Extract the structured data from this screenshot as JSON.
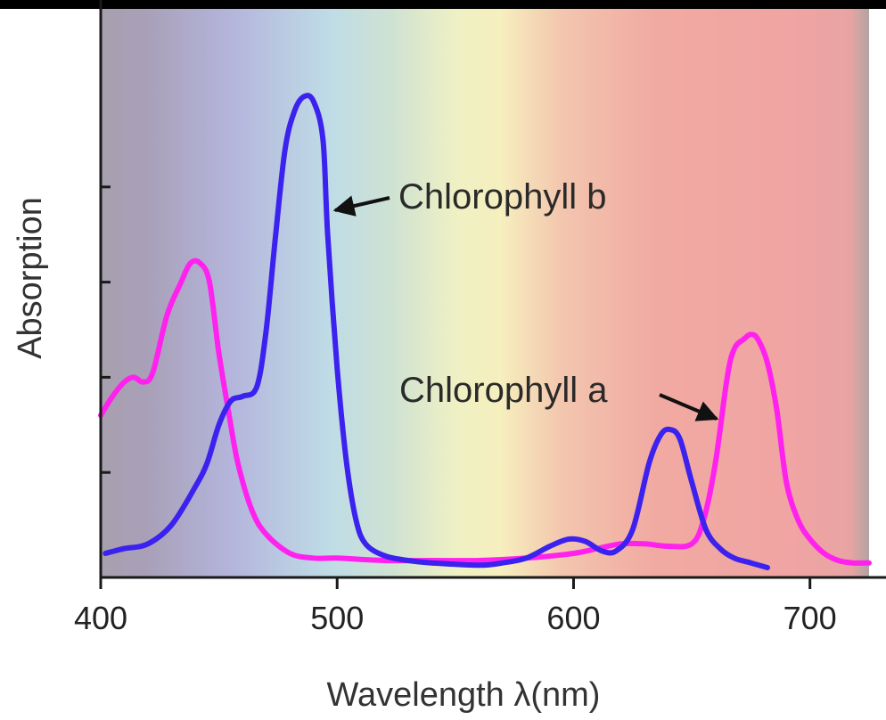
{
  "chart_data": {
    "type": "line",
    "xlabel": "Wavelength λ(nm)",
    "ylabel": "Absorption",
    "xlim": [
      400,
      725
    ],
    "ylim": [
      0,
      1.0
    ],
    "x_ticks": [
      400,
      500,
      600,
      700
    ],
    "y_ticks": [
      0.2,
      0.4,
      0.6,
      0.8
    ],
    "y_tick_labels_shown": false,
    "grid": false,
    "legend": "none",
    "background": "visible-spectrum gradient",
    "series": [
      {
        "name": "Chlorophyll a",
        "color": "#ff22ee",
        "x": [
          400,
          405,
          410,
          414,
          418,
          422,
          428,
          434,
          438,
          442,
          446,
          450,
          454,
          458,
          464,
          470,
          480,
          490,
          500,
          520,
          540,
          560,
          580,
          600,
          610,
          620,
          630,
          640,
          650,
          655,
          660,
          665,
          668,
          672,
          675,
          678,
          682,
          686,
          690,
          695,
          700,
          706,
          712,
          718,
          725
        ],
        "y": [
          0.32,
          0.36,
          0.39,
          0.4,
          0.39,
          0.41,
          0.53,
          0.6,
          0.64,
          0.64,
          0.6,
          0.45,
          0.33,
          0.22,
          0.12,
          0.07,
          0.03,
          0.02,
          0.02,
          0.015,
          0.015,
          0.015,
          0.02,
          0.03,
          0.04,
          0.05,
          0.05,
          0.045,
          0.05,
          0.1,
          0.22,
          0.4,
          0.46,
          0.48,
          0.49,
          0.48,
          0.43,
          0.33,
          0.18,
          0.1,
          0.06,
          0.03,
          0.015,
          0.01,
          0.01
        ]
      },
      {
        "name": "Chlorophyll b",
        "color": "#3b22ee",
        "x": [
          402,
          410,
          420,
          430,
          440,
          445,
          450,
          455,
          460,
          466,
          470,
          474,
          478,
          482,
          486,
          490,
          494,
          496,
          500,
          504,
          508,
          512,
          520,
          530,
          540,
          560,
          570,
          580,
          590,
          598,
          605,
          612,
          618,
          625,
          632,
          637,
          641,
          645,
          650,
          656,
          662,
          668,
          675,
          682
        ],
        "y": [
          0.03,
          0.04,
          0.05,
          0.09,
          0.17,
          0.22,
          0.3,
          0.35,
          0.36,
          0.38,
          0.5,
          0.7,
          0.88,
          0.96,
          0.99,
          0.98,
          0.9,
          0.7,
          0.42,
          0.22,
          0.1,
          0.05,
          0.025,
          0.015,
          0.01,
          0.005,
          0.01,
          0.02,
          0.045,
          0.06,
          0.055,
          0.035,
          0.035,
          0.08,
          0.22,
          0.28,
          0.29,
          0.27,
          0.18,
          0.08,
          0.04,
          0.02,
          0.01,
          0.0
        ]
      }
    ],
    "annotations": [
      {
        "text": "Chlorophyll b",
        "arrow_target": [
          495,
          0.78
        ]
      },
      {
        "text": "Chlorophyll a",
        "arrow_target": [
          662,
          0.27
        ]
      }
    ]
  }
}
